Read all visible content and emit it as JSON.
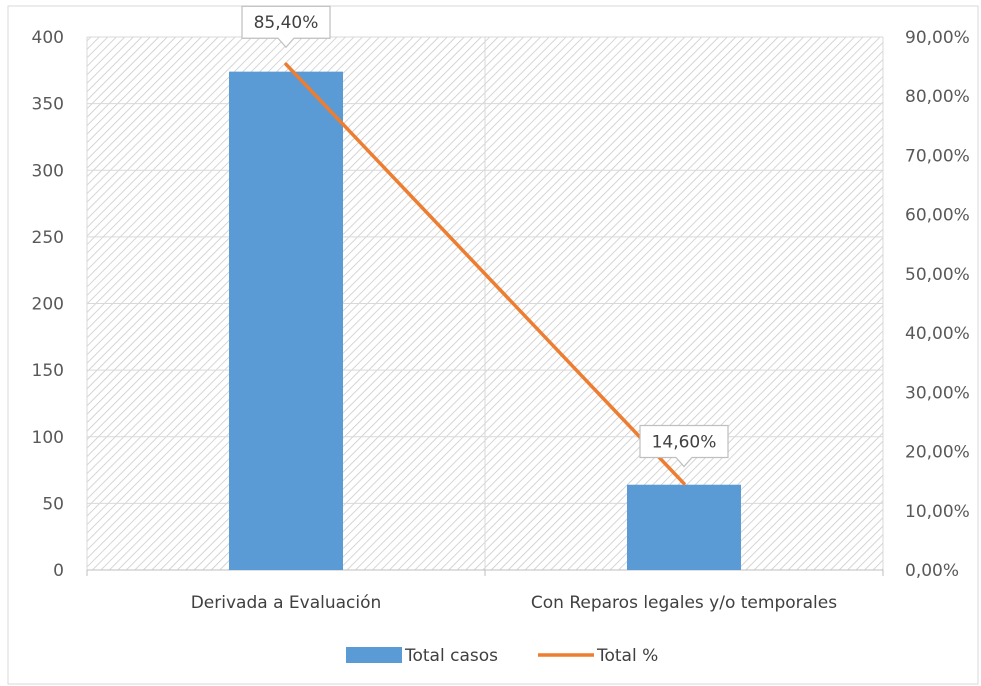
{
  "chart_data": {
    "type": "bar+line",
    "title": "",
    "categories": [
      "Derivada a Evaluación",
      "Con Reparos legales y/o temporales"
    ],
    "series": [
      {
        "name": "Total casos",
        "type": "bar",
        "axis": "left",
        "values": [
          374,
          64
        ],
        "color": "#5B9BD5"
      },
      {
        "name": "Total %",
        "type": "line",
        "axis": "right",
        "values": [
          85.4,
          14.6
        ],
        "labels": [
          "85,40%",
          "14,60%"
        ],
        "color": "#ED7D31"
      }
    ],
    "y_left": {
      "min": 0,
      "max": 400,
      "step": 50,
      "ticks": [
        "0",
        "50",
        "100",
        "150",
        "200",
        "250",
        "300",
        "350",
        "400"
      ]
    },
    "y_right": {
      "min": 0,
      "max": 90,
      "step": 10,
      "ticks": [
        "0,00%",
        "10,00%",
        "20,00%",
        "30,00%",
        "40,00%",
        "50,00%",
        "60,00%",
        "70,00%",
        "80,00%",
        "90,00%"
      ]
    },
    "grid": true,
    "plot_background": "diagonal-hatch",
    "legend_position": "bottom"
  }
}
